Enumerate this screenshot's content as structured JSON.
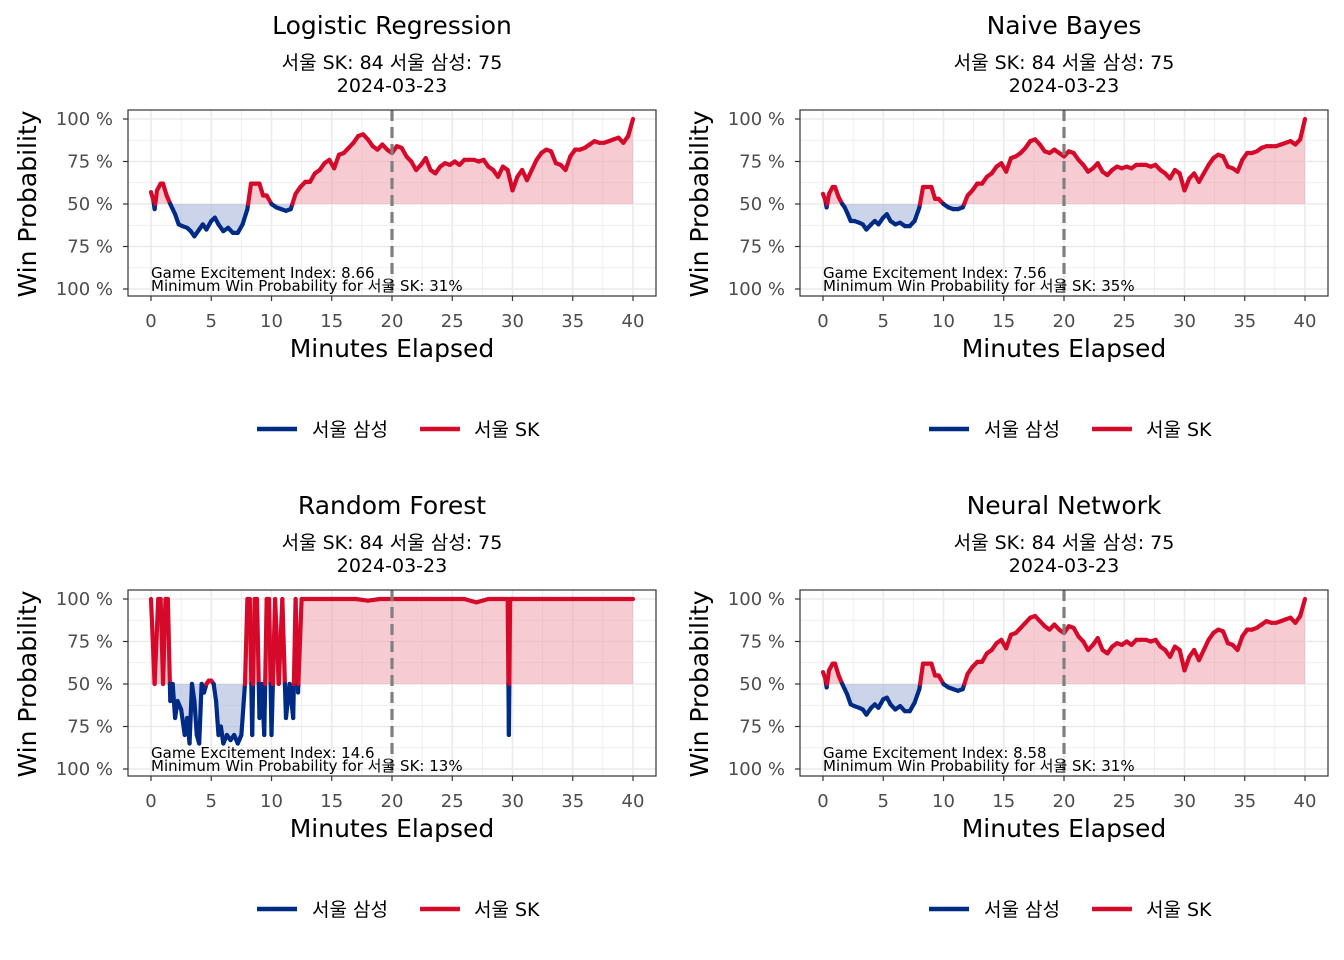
{
  "colors": {
    "home": "#002B85",
    "away": "#D50A2B",
    "home_fill": "#A3B0D9",
    "away_fill": "#EE9AA6",
    "grid": "#EBEBEB",
    "halftime_line": "#7F7F7F",
    "panel_border": "#333333"
  },
  "chart_data": [
    {
      "type": "line",
      "title": "Logistic Regression",
      "subtitle": "서울 SK: 84  서울 삼성: 75",
      "date": "2024-03-23",
      "xlabel": "Minutes Elapsed",
      "ylabel": "Win Probability",
      "xlim": [
        0,
        40
      ],
      "ylim": [
        0,
        1
      ],
      "x_ticks": [
        "0",
        "5",
        "10",
        "15",
        "20",
        "25",
        "30",
        "35",
        "40"
      ],
      "y_ticks": [
        "100 %",
        "75 %",
        "50 %",
        "75 %",
        "100 %"
      ],
      "halftime_x": 20,
      "annotation_excitement": "Game Excitement Index: 8.66",
      "annotation_min_wp": "Minimum Win Probability for 서울 SK: 31%",
      "legend": [
        "서울 삼성",
        "서울 SK"
      ],
      "series": [
        {
          "name": "서울 SK",
          "x": [
            0,
            0.2,
            0.3,
            0.5,
            0.8,
            1.0,
            1.3,
            1.6,
            1.8,
            2.0,
            2.3,
            2.6,
            3.0,
            3.3,
            3.6,
            4.0,
            4.3,
            4.6,
            5.0,
            5.3,
            5.6,
            6.0,
            6.4,
            6.8,
            7.2,
            7.6,
            8.0,
            8.3,
            8.6,
            9.0,
            9.3,
            9.6,
            10.0,
            10.4,
            10.8,
            11.2,
            11.6,
            12.0,
            12.4,
            12.8,
            13.2,
            13.6,
            14.0,
            14.4,
            14.8,
            15.2,
            15.6,
            16.0,
            16.4,
            16.8,
            17.2,
            17.6,
            18.0,
            18.4,
            18.8,
            19.2,
            19.6,
            20.0,
            20.4,
            20.8,
            21.2,
            21.6,
            22.0,
            22.4,
            22.8,
            23.2,
            23.6,
            24.0,
            24.4,
            24.8,
            25.2,
            25.6,
            26.0,
            26.4,
            26.8,
            27.2,
            27.6,
            28.0,
            28.4,
            28.8,
            29.2,
            29.6,
            30.0,
            30.4,
            30.8,
            31.2,
            31.6,
            32.0,
            32.4,
            32.8,
            33.2,
            33.6,
            34.0,
            34.4,
            34.8,
            35.2,
            35.6,
            36.0,
            36.4,
            36.8,
            37.2,
            37.6,
            38.0,
            38.4,
            38.8,
            39.2,
            39.6,
            40.0
          ],
          "y": [
            0.57,
            0.52,
            0.47,
            0.58,
            0.62,
            0.62,
            0.55,
            0.5,
            0.47,
            0.44,
            0.38,
            0.37,
            0.36,
            0.34,
            0.31,
            0.35,
            0.38,
            0.35,
            0.4,
            0.42,
            0.38,
            0.34,
            0.36,
            0.33,
            0.33,
            0.38,
            0.47,
            0.62,
            0.62,
            0.62,
            0.55,
            0.55,
            0.5,
            0.48,
            0.47,
            0.46,
            0.47,
            0.56,
            0.6,
            0.63,
            0.63,
            0.68,
            0.7,
            0.74,
            0.76,
            0.71,
            0.79,
            0.8,
            0.83,
            0.86,
            0.9,
            0.91,
            0.88,
            0.84,
            0.82,
            0.85,
            0.82,
            0.8,
            0.84,
            0.83,
            0.78,
            0.75,
            0.7,
            0.73,
            0.77,
            0.7,
            0.68,
            0.72,
            0.74,
            0.73,
            0.75,
            0.73,
            0.76,
            0.76,
            0.76,
            0.75,
            0.76,
            0.72,
            0.7,
            0.66,
            0.72,
            0.7,
            0.58,
            0.66,
            0.7,
            0.64,
            0.7,
            0.76,
            0.8,
            0.82,
            0.81,
            0.74,
            0.73,
            0.7,
            0.78,
            0.82,
            0.82,
            0.83,
            0.85,
            0.87,
            0.86,
            0.86,
            0.87,
            0.88,
            0.89,
            0.86,
            0.9,
            1.0
          ]
        }
      ]
    },
    {
      "type": "line",
      "title": "Naive Bayes",
      "subtitle": "서울 SK: 84  서울 삼성: 75",
      "date": "2024-03-23",
      "xlabel": "Minutes Elapsed",
      "ylabel": "Win Probability",
      "xlim": [
        0,
        40
      ],
      "ylim": [
        0,
        1
      ],
      "x_ticks": [
        "0",
        "5",
        "10",
        "15",
        "20",
        "25",
        "30",
        "35",
        "40"
      ],
      "y_ticks": [
        "100 %",
        "75 %",
        "50 %",
        "75 %",
        "100 %"
      ],
      "halftime_x": 20,
      "annotation_excitement": "Game Excitement Index: 7.56",
      "annotation_min_wp": "Minimum Win Probability for 서울 SK: 35%",
      "legend": [
        "서울 삼성",
        "서울 SK"
      ],
      "series": [
        {
          "name": "서울 SK",
          "x": [
            0,
            0.2,
            0.3,
            0.5,
            0.8,
            1.0,
            1.3,
            1.6,
            1.8,
            2.0,
            2.3,
            2.6,
            3.0,
            3.3,
            3.6,
            4.0,
            4.3,
            4.6,
            5.0,
            5.3,
            5.6,
            6.0,
            6.4,
            6.8,
            7.2,
            7.6,
            8.0,
            8.3,
            8.6,
            9.0,
            9.3,
            9.6,
            10.0,
            10.4,
            10.8,
            11.2,
            11.6,
            12.0,
            12.4,
            12.8,
            13.2,
            13.6,
            14.0,
            14.4,
            14.8,
            15.2,
            15.6,
            16.0,
            16.4,
            16.8,
            17.2,
            17.6,
            18.0,
            18.4,
            18.8,
            19.2,
            19.6,
            20.0,
            20.4,
            20.8,
            21.2,
            21.6,
            22.0,
            22.4,
            22.8,
            23.2,
            23.6,
            24.0,
            24.4,
            24.8,
            25.2,
            25.6,
            26.0,
            26.4,
            26.8,
            27.2,
            27.6,
            28.0,
            28.4,
            28.8,
            29.2,
            29.6,
            30.0,
            30.4,
            30.8,
            31.2,
            31.6,
            32.0,
            32.4,
            32.8,
            33.2,
            33.6,
            34.0,
            34.4,
            34.8,
            35.2,
            35.6,
            36.0,
            36.4,
            36.8,
            37.2,
            37.6,
            38.0,
            38.4,
            38.8,
            39.2,
            39.6,
            40.0
          ],
          "y": [
            0.56,
            0.52,
            0.48,
            0.56,
            0.6,
            0.6,
            0.54,
            0.5,
            0.48,
            0.45,
            0.4,
            0.4,
            0.39,
            0.38,
            0.35,
            0.38,
            0.4,
            0.38,
            0.42,
            0.44,
            0.4,
            0.38,
            0.39,
            0.37,
            0.37,
            0.4,
            0.48,
            0.6,
            0.6,
            0.6,
            0.53,
            0.53,
            0.5,
            0.48,
            0.47,
            0.47,
            0.48,
            0.55,
            0.58,
            0.62,
            0.62,
            0.66,
            0.68,
            0.72,
            0.74,
            0.69,
            0.77,
            0.78,
            0.8,
            0.83,
            0.87,
            0.88,
            0.85,
            0.81,
            0.8,
            0.82,
            0.8,
            0.78,
            0.81,
            0.8,
            0.76,
            0.73,
            0.69,
            0.71,
            0.74,
            0.69,
            0.67,
            0.7,
            0.72,
            0.71,
            0.72,
            0.71,
            0.73,
            0.73,
            0.73,
            0.72,
            0.73,
            0.7,
            0.68,
            0.65,
            0.7,
            0.68,
            0.58,
            0.65,
            0.68,
            0.63,
            0.68,
            0.73,
            0.77,
            0.79,
            0.78,
            0.72,
            0.71,
            0.69,
            0.76,
            0.8,
            0.8,
            0.81,
            0.83,
            0.84,
            0.84,
            0.84,
            0.85,
            0.86,
            0.87,
            0.85,
            0.88,
            1.0
          ]
        }
      ]
    },
    {
      "type": "line",
      "title": "Random Forest",
      "subtitle": "서울 SK: 84  서울 삼성: 75",
      "date": "2024-03-23",
      "xlabel": "Minutes Elapsed",
      "ylabel": "Win Probability",
      "xlim": [
        0,
        40
      ],
      "ylim": [
        0,
        1
      ],
      "x_ticks": [
        "0",
        "5",
        "10",
        "15",
        "20",
        "25",
        "30",
        "35",
        "40"
      ],
      "y_ticks": [
        "100 %",
        "75 %",
        "50 %",
        "75 %",
        "100 %"
      ],
      "halftime_x": 20,
      "annotation_excitement": "Game Excitement Index: 14.6",
      "annotation_min_wp": "Minimum Win Probability for 서울 SK: 13%",
      "legend": [
        "서울 삼성",
        "서울 SK"
      ],
      "series": [
        {
          "name": "서울 SK",
          "x": [
            0,
            0.3,
            0.6,
            0.8,
            1.0,
            1.2,
            1.4,
            1.6,
            1.8,
            2.0,
            2.2,
            2.5,
            2.8,
            3.0,
            3.2,
            3.4,
            3.6,
            3.8,
            4.0,
            4.2,
            4.4,
            4.6,
            4.8,
            5.0,
            5.2,
            5.4,
            5.6,
            5.8,
            6.0,
            6.3,
            6.6,
            6.9,
            7.2,
            7.5,
            7.8,
            8.0,
            8.2,
            8.4,
            8.6,
            8.8,
            9.0,
            9.2,
            9.4,
            9.6,
            9.8,
            10.0,
            10.3,
            10.6,
            10.9,
            11.2,
            11.5,
            11.8,
            12.0,
            12.2,
            12.5,
            13.0,
            14.0,
            15.0,
            16.0,
            17.0,
            18.0,
            19.0,
            20.0,
            21.0,
            22.0,
            23.0,
            24.0,
            25.0,
            26.0,
            27.0,
            28.0,
            29.0,
            29.6,
            29.7,
            29.8,
            30.0,
            31.0,
            32.0,
            33.0,
            34.0,
            35.0,
            36.0,
            37.0,
            38.0,
            39.0,
            40.0
          ],
          "y": [
            1.0,
            0.5,
            1.0,
            1.0,
            0.5,
            1.0,
            1.0,
            0.4,
            0.5,
            0.3,
            0.4,
            0.35,
            0.2,
            0.3,
            0.15,
            0.5,
            0.4,
            0.2,
            0.15,
            0.5,
            0.45,
            0.5,
            0.52,
            0.52,
            0.5,
            0.4,
            0.2,
            0.25,
            0.15,
            0.2,
            0.17,
            0.2,
            0.15,
            0.2,
            0.5,
            1.0,
            1.0,
            0.2,
            1.0,
            1.0,
            0.3,
            0.5,
            0.2,
            1.0,
            1.0,
            0.2,
            1.0,
            0.5,
            1.0,
            0.3,
            0.5,
            0.3,
            1.0,
            0.45,
            1.0,
            1.0,
            1.0,
            1.0,
            1.0,
            1.0,
            0.99,
            1.0,
            1.0,
            1.0,
            1.0,
            1.0,
            1.0,
            1.0,
            1.0,
            0.98,
            1.0,
            1.0,
            1.0,
            0.2,
            1.0,
            1.0,
            1.0,
            1.0,
            1.0,
            1.0,
            1.0,
            1.0,
            1.0,
            1.0,
            1.0,
            1.0
          ]
        }
      ]
    },
    {
      "type": "line",
      "title": "Neural Network",
      "subtitle": "서울 SK: 84  서울 삼성: 75",
      "date": "2024-03-23",
      "xlabel": "Minutes Elapsed",
      "ylabel": "Win Probability",
      "xlim": [
        0,
        40
      ],
      "ylim": [
        0,
        1
      ],
      "x_ticks": [
        "0",
        "5",
        "10",
        "15",
        "20",
        "25",
        "30",
        "35",
        "40"
      ],
      "y_ticks": [
        "100 %",
        "75 %",
        "50 %",
        "75 %",
        "100 %"
      ],
      "halftime_x": 20,
      "annotation_excitement": "Game Excitement Index: 8.58",
      "annotation_min_wp": "Minimum Win Probability for 서울 SK: 31%",
      "legend": [
        "서울 삼성",
        "서울 SK"
      ],
      "series": [
        {
          "name": "서울 SK",
          "x": [
            0,
            0.2,
            0.3,
            0.5,
            0.8,
            1.0,
            1.3,
            1.6,
            1.8,
            2.0,
            2.3,
            2.6,
            3.0,
            3.3,
            3.6,
            4.0,
            4.3,
            4.6,
            5.0,
            5.3,
            5.6,
            6.0,
            6.4,
            6.8,
            7.2,
            7.6,
            8.0,
            8.3,
            8.6,
            9.0,
            9.3,
            9.6,
            10.0,
            10.4,
            10.8,
            11.2,
            11.6,
            12.0,
            12.4,
            12.8,
            13.2,
            13.6,
            14.0,
            14.4,
            14.8,
            15.2,
            15.6,
            16.0,
            16.4,
            16.8,
            17.2,
            17.6,
            18.0,
            18.4,
            18.8,
            19.2,
            19.6,
            20.0,
            20.4,
            20.8,
            21.2,
            21.6,
            22.0,
            22.4,
            22.8,
            23.2,
            23.6,
            24.0,
            24.4,
            24.8,
            25.2,
            25.6,
            26.0,
            26.4,
            26.8,
            27.2,
            27.6,
            28.0,
            28.4,
            28.8,
            29.2,
            29.6,
            30.0,
            30.4,
            30.8,
            31.2,
            31.6,
            32.0,
            32.4,
            32.8,
            33.2,
            33.6,
            34.0,
            34.4,
            34.8,
            35.2,
            35.6,
            36.0,
            36.4,
            36.8,
            37.2,
            37.6,
            38.0,
            38.4,
            38.8,
            39.2,
            39.6,
            40.0
          ],
          "y": [
            0.57,
            0.53,
            0.48,
            0.58,
            0.62,
            0.62,
            0.55,
            0.5,
            0.47,
            0.44,
            0.38,
            0.37,
            0.36,
            0.35,
            0.32,
            0.36,
            0.38,
            0.36,
            0.41,
            0.42,
            0.38,
            0.35,
            0.37,
            0.34,
            0.34,
            0.39,
            0.47,
            0.62,
            0.62,
            0.62,
            0.55,
            0.55,
            0.5,
            0.48,
            0.47,
            0.46,
            0.47,
            0.56,
            0.6,
            0.63,
            0.63,
            0.68,
            0.7,
            0.74,
            0.76,
            0.71,
            0.79,
            0.8,
            0.83,
            0.86,
            0.89,
            0.9,
            0.87,
            0.84,
            0.82,
            0.85,
            0.82,
            0.8,
            0.84,
            0.83,
            0.78,
            0.75,
            0.7,
            0.73,
            0.77,
            0.7,
            0.68,
            0.72,
            0.74,
            0.73,
            0.75,
            0.73,
            0.76,
            0.76,
            0.76,
            0.75,
            0.76,
            0.72,
            0.7,
            0.66,
            0.72,
            0.7,
            0.58,
            0.66,
            0.7,
            0.64,
            0.7,
            0.76,
            0.8,
            0.82,
            0.81,
            0.74,
            0.73,
            0.7,
            0.78,
            0.82,
            0.82,
            0.83,
            0.85,
            0.87,
            0.86,
            0.86,
            0.87,
            0.88,
            0.89,
            0.86,
            0.9,
            1.0
          ]
        }
      ]
    }
  ]
}
